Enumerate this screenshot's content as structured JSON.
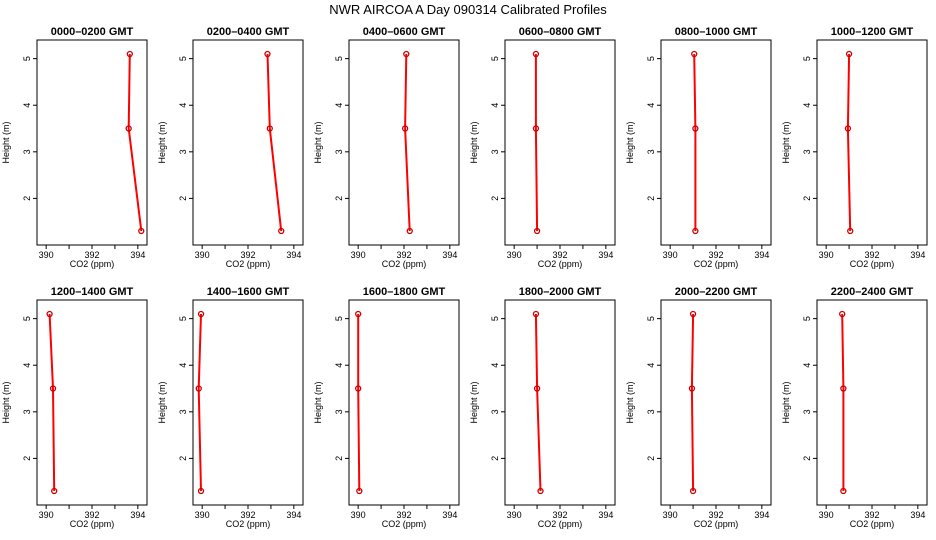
{
  "page": {
    "title": "NWR AIRCOA A  Day 090314  Calibrated Profiles"
  },
  "colors": {
    "line": "#ff0000",
    "marker": "#cc0000",
    "frame": "#000000"
  },
  "chart_data": [
    {
      "type": "line",
      "title": "0000–0200 GMT",
      "xlabel": "CO2 (ppm)",
      "ylabel": "Height (m)",
      "xlim": [
        389.6,
        394.4
      ],
      "ylim": [
        1.0,
        5.4
      ],
      "xticks": [
        "390",
        "392",
        "394"
      ],
      "yticks": [
        "2",
        "3",
        "4",
        "5"
      ],
      "series": [
        {
          "x": [
            394.15,
            393.6,
            393.65
          ],
          "y": [
            1.3,
            3.5,
            5.1
          ]
        }
      ]
    },
    {
      "type": "line",
      "title": "0200–0400 GMT",
      "xlabel": "CO2 (ppm)",
      "ylabel": "Height (m)",
      "xlim": [
        389.6,
        394.4
      ],
      "ylim": [
        1.0,
        5.4
      ],
      "xticks": [
        "390",
        "392",
        "394"
      ],
      "yticks": [
        "2",
        "3",
        "4",
        "5"
      ],
      "series": [
        {
          "x": [
            393.45,
            392.95,
            392.85
          ],
          "y": [
            1.3,
            3.5,
            5.1
          ]
        }
      ]
    },
    {
      "type": "line",
      "title": "0400–0600 GMT",
      "xlabel": "CO2 (ppm)",
      "ylabel": "Height (m)",
      "xlim": [
        389.6,
        394.4
      ],
      "ylim": [
        1.0,
        5.4
      ],
      "xticks": [
        "390",
        "392",
        "394"
      ],
      "yticks": [
        "2",
        "3",
        "4",
        "5"
      ],
      "series": [
        {
          "x": [
            392.25,
            392.05,
            392.1
          ],
          "y": [
            1.3,
            3.5,
            5.1
          ]
        }
      ]
    },
    {
      "type": "line",
      "title": "0600–0800 GMT",
      "xlabel": "CO2 (ppm)",
      "ylabel": "Height (m)",
      "xlim": [
        389.6,
        394.4
      ],
      "ylim": [
        1.0,
        5.4
      ],
      "xticks": [
        "390",
        "392",
        "394"
      ],
      "yticks": [
        "2",
        "3",
        "4",
        "5"
      ],
      "series": [
        {
          "x": [
            391.0,
            390.95,
            390.95
          ],
          "y": [
            1.3,
            3.5,
            5.1
          ]
        }
      ]
    },
    {
      "type": "line",
      "title": "0800–1000 GMT",
      "xlabel": "CO2 (ppm)",
      "ylabel": "Height (m)",
      "xlim": [
        389.6,
        394.4
      ],
      "ylim": [
        1.0,
        5.4
      ],
      "xticks": [
        "390",
        "392",
        "394"
      ],
      "yticks": [
        "2",
        "3",
        "4",
        "5"
      ],
      "series": [
        {
          "x": [
            391.1,
            391.1,
            391.05
          ],
          "y": [
            1.3,
            3.5,
            5.1
          ]
        }
      ]
    },
    {
      "type": "line",
      "title": "1000–1200 GMT",
      "xlabel": "CO2 (ppm)",
      "ylabel": "Height (m)",
      "xlim": [
        389.6,
        394.4
      ],
      "ylim": [
        1.0,
        5.4
      ],
      "xticks": [
        "390",
        "392",
        "394"
      ],
      "yticks": [
        "2",
        "3",
        "4",
        "5"
      ],
      "series": [
        {
          "x": [
            391.05,
            390.95,
            391.0
          ],
          "y": [
            1.3,
            3.5,
            5.1
          ]
        }
      ]
    },
    {
      "type": "line",
      "title": "1200–1400 GMT",
      "xlabel": "CO2 (ppm)",
      "ylabel": "Height (m)",
      "xlim": [
        389.6,
        394.4
      ],
      "ylim": [
        1.0,
        5.4
      ],
      "xticks": [
        "390",
        "392",
        "394"
      ],
      "yticks": [
        "2",
        "3",
        "4",
        "5"
      ],
      "series": [
        {
          "x": [
            390.35,
            390.3,
            390.15
          ],
          "y": [
            1.3,
            3.5,
            5.1
          ]
        }
      ]
    },
    {
      "type": "line",
      "title": "1400–1600 GMT",
      "xlabel": "CO2 (ppm)",
      "ylabel": "Height (m)",
      "xlim": [
        389.6,
        394.4
      ],
      "ylim": [
        1.0,
        5.4
      ],
      "xticks": [
        "390",
        "392",
        "394"
      ],
      "yticks": [
        "2",
        "3",
        "4",
        "5"
      ],
      "series": [
        {
          "x": [
            389.95,
            389.85,
            389.95
          ],
          "y": [
            1.3,
            3.5,
            5.1
          ]
        }
      ]
    },
    {
      "type": "line",
      "title": "1600–1800 GMT",
      "xlabel": "CO2 (ppm)",
      "ylabel": "Height (m)",
      "xlim": [
        389.6,
        394.4
      ],
      "ylim": [
        1.0,
        5.4
      ],
      "xticks": [
        "390",
        "392",
        "394"
      ],
      "yticks": [
        "2",
        "3",
        "4",
        "5"
      ],
      "series": [
        {
          "x": [
            390.05,
            390.0,
            390.0
          ],
          "y": [
            1.3,
            3.5,
            5.1
          ]
        }
      ]
    },
    {
      "type": "line",
      "title": "1800–2000 GMT",
      "xlabel": "CO2 (ppm)",
      "ylabel": "Height (m)",
      "xlim": [
        389.6,
        394.4
      ],
      "ylim": [
        1.0,
        5.4
      ],
      "xticks": [
        "390",
        "392",
        "394"
      ],
      "yticks": [
        "2",
        "3",
        "4",
        "5"
      ],
      "series": [
        {
          "x": [
            391.15,
            391.0,
            390.95
          ],
          "y": [
            1.3,
            3.5,
            5.1
          ]
        }
      ]
    },
    {
      "type": "line",
      "title": "2000–2200 GMT",
      "xlabel": "CO2 (ppm)",
      "ylabel": "Height (m)",
      "xlim": [
        389.6,
        394.4
      ],
      "ylim": [
        1.0,
        5.4
      ],
      "xticks": [
        "390",
        "392",
        "394"
      ],
      "yticks": [
        "2",
        "3",
        "4",
        "5"
      ],
      "series": [
        {
          "x": [
            391.0,
            390.95,
            391.0
          ],
          "y": [
            1.3,
            3.5,
            5.1
          ]
        }
      ]
    },
    {
      "type": "line",
      "title": "2200–2400 GMT",
      "xlabel": "CO2 (ppm)",
      "ylabel": "Height (m)",
      "xlim": [
        389.6,
        394.4
      ],
      "ylim": [
        1.0,
        5.4
      ],
      "xticks": [
        "390",
        "392",
        "394"
      ],
      "yticks": [
        "2",
        "3",
        "4",
        "5"
      ],
      "series": [
        {
          "x": [
            390.75,
            390.75,
            390.7
          ],
          "y": [
            1.3,
            3.5,
            5.1
          ]
        }
      ]
    }
  ]
}
